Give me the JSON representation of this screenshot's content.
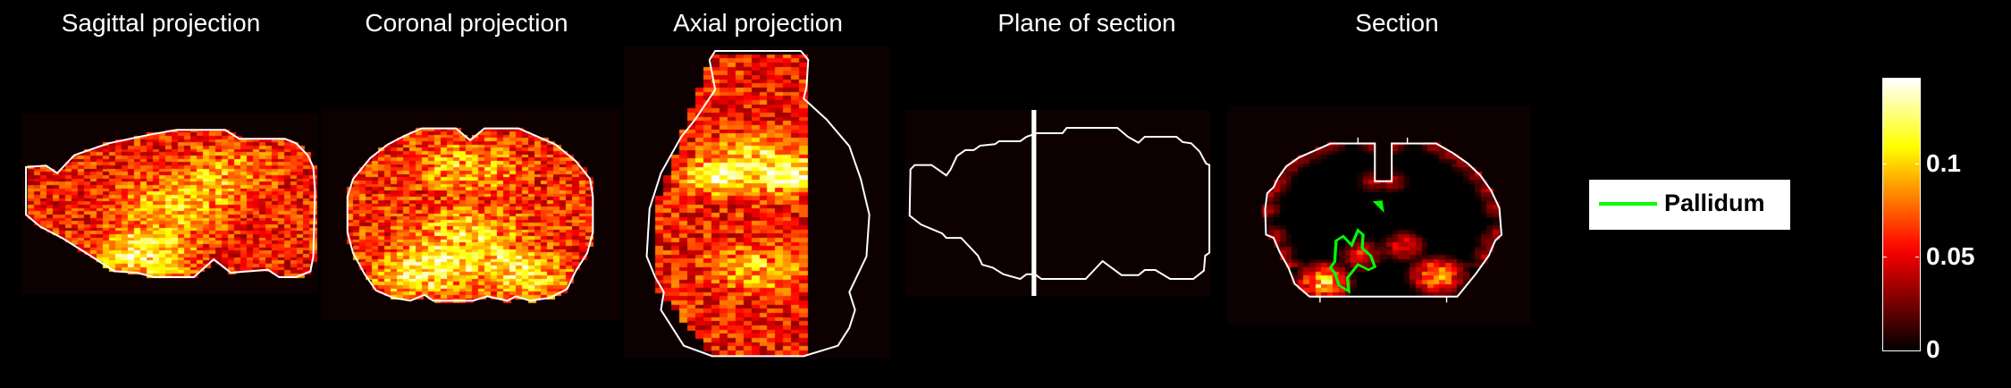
{
  "panels": [
    {
      "id": "sagittal",
      "title": "Sagittal projection"
    },
    {
      "id": "coronal",
      "title": "Coronal projection"
    },
    {
      "id": "axial",
      "title": "Axial projection"
    },
    {
      "id": "plane",
      "title": "Plane of section"
    },
    {
      "id": "section",
      "title": "Section"
    }
  ],
  "legend": {
    "label": "Pallidum",
    "color": "#00ff00"
  },
  "chart_data": {
    "type": "heatmap",
    "colormap": "hot",
    "colorbar": {
      "range": [
        0,
        0.146
      ],
      "ticks": [
        {
          "value": 0.1,
          "label": "0.1"
        },
        {
          "value": 0.05,
          "label": "0.05"
        },
        {
          "value": 0,
          "label": "0"
        }
      ]
    },
    "outline_color": "#ffffff",
    "region_outline_color": "#00ff00",
    "background": "#000000"
  }
}
